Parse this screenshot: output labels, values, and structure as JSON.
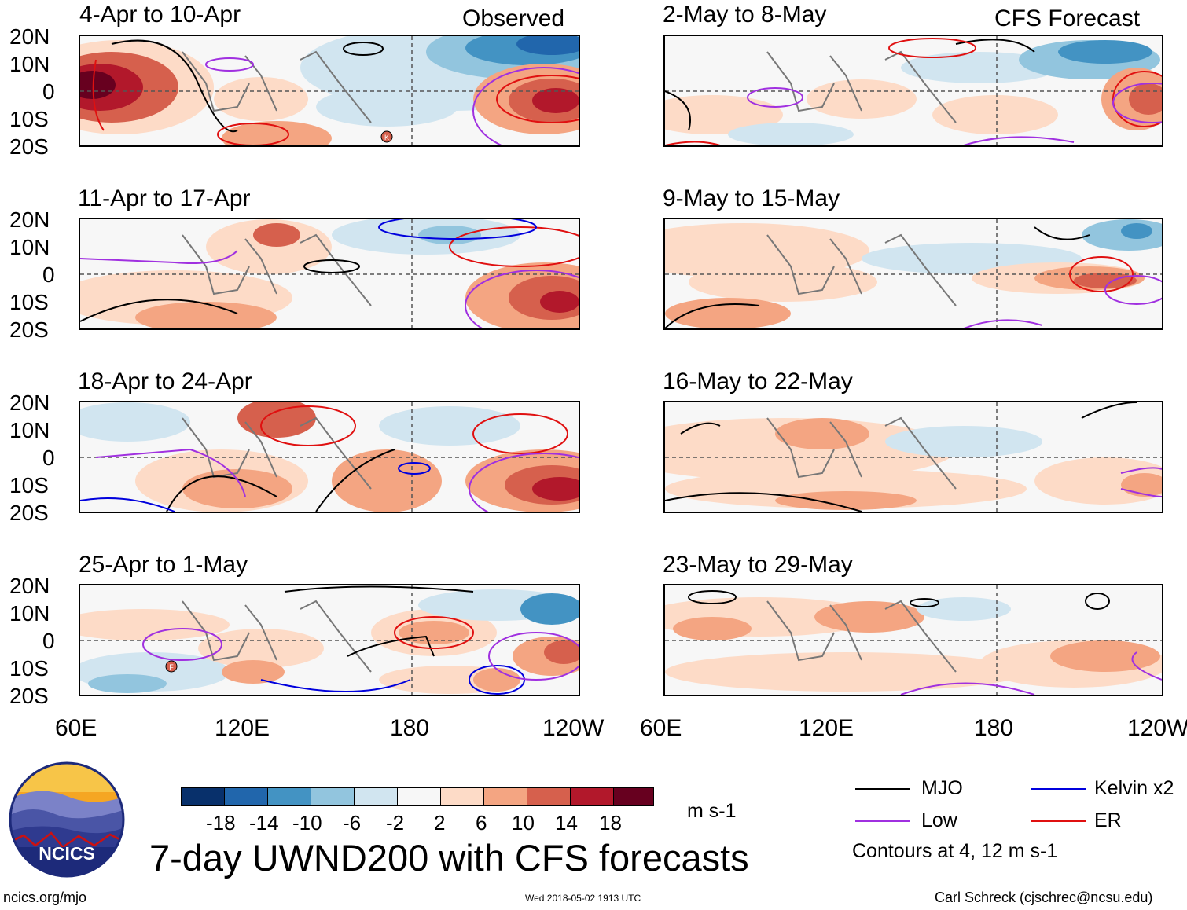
{
  "columns": {
    "observed": {
      "title": "Observed"
    },
    "forecast": {
      "title": "CFS Forecast"
    }
  },
  "panels": {
    "obs": [
      {
        "period": "4-Apr to 10-Apr"
      },
      {
        "period": "11-Apr to 17-Apr"
      },
      {
        "period": "18-Apr to 24-Apr"
      },
      {
        "period": "25-Apr to 1-May"
      }
    ],
    "fcst": [
      {
        "period": "2-May to 8-May"
      },
      {
        "period": "9-May to 15-May"
      },
      {
        "period": "16-May to 22-May"
      },
      {
        "period": "23-May to 29-May"
      }
    ]
  },
  "axes": {
    "lat_labels": [
      "20N",
      "10N",
      "0",
      "10S",
      "20S"
    ],
    "lon_labels": [
      "60E",
      "120E",
      "180",
      "120W"
    ]
  },
  "storm_labels": {
    "obs_0": "K",
    "obs_3": "F"
  },
  "colorbar": {
    "tick_labels": [
      "-18",
      "-14",
      "-10",
      "-6",
      "-2",
      "2",
      "6",
      "10",
      "14",
      "18"
    ],
    "units": "m s-1",
    "colors": [
      "#08306b",
      "#2166ac",
      "#4393c3",
      "#92c5de",
      "#d1e5f0",
      "#f7f7f7",
      "#fddbc7",
      "#f4a582",
      "#d6604d",
      "#b2182b",
      "#67001f"
    ]
  },
  "legend": {
    "mjo": {
      "label": "MJO",
      "color": "#000000"
    },
    "kelvin": {
      "label": "Kelvin x2",
      "color": "#0000dd"
    },
    "low": {
      "label": "Low",
      "color": "#a030e0"
    },
    "er": {
      "label": "ER",
      "color": "#e01010"
    },
    "contours_note": "Contours at 4, 12 m s-1"
  },
  "title": "7-day UWND200 with CFS forecasts",
  "logo_text": "NCICS",
  "footer": {
    "url": "ncics.org/mjo",
    "timestamp": "Wed 2018-05-02 1913 UTC",
    "credit": "Carl Schreck (cjschrec@ncsu.edu)"
  }
}
